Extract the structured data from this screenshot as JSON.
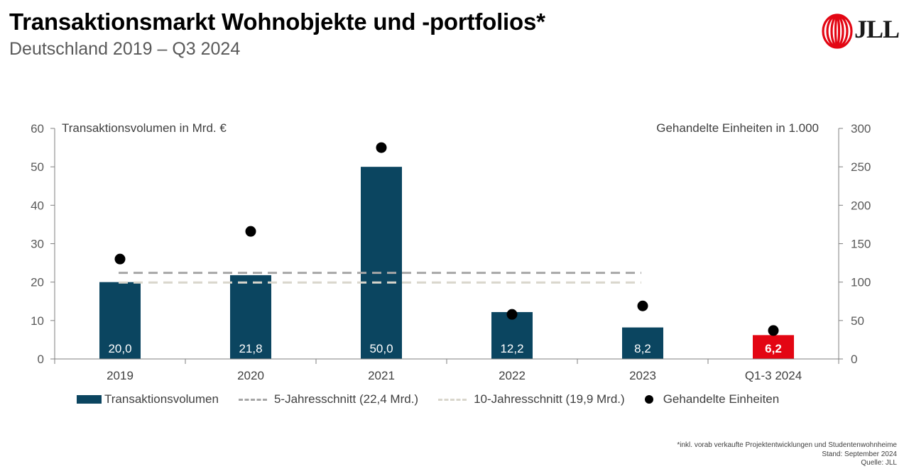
{
  "title": "Transaktionsmarkt Wohnobjekte und -portfolios*",
  "subtitle": "Deutschland 2019 – Q3 2024",
  "logo": {
    "text": "JLL",
    "color": "#e30613"
  },
  "chart_data": {
    "type": "bar",
    "categories": [
      "2019",
      "2020",
      "2021",
      "2022",
      "2023",
      "Q1-3 2024"
    ],
    "series": [
      {
        "name": "Transaktionsvolumen",
        "type": "bar",
        "axis": "left",
        "values": [
          20.0,
          21.8,
          50.0,
          12.2,
          8.2,
          6.2
        ],
        "labels": [
          "20,0",
          "21,8",
          "50,0",
          "12,2",
          "8,2",
          "6,2"
        ],
        "color": "#0b4560",
        "highlight_color": "#e30613",
        "highlight_index": 5
      },
      {
        "name": "5-Jahresschnitt (22,4 Mrd.)",
        "type": "dashed-line",
        "axis": "left",
        "value": 22.4,
        "color": "#a6a6a6"
      },
      {
        "name": "10-Jahresschnitt (19,9 Mrd.)",
        "type": "dashed-line",
        "axis": "left",
        "value": 19.9,
        "color": "#d9d6cc"
      },
      {
        "name": "Gehandelte Einheiten",
        "type": "scatter",
        "axis": "right",
        "values": [
          130,
          166,
          275,
          58,
          69,
          37
        ],
        "color": "#000000"
      }
    ],
    "ylabel": "Transaktionsvolumen in Mrd. €",
    "ylim": [
      0,
      60
    ],
    "yticks": [
      "0",
      "10",
      "20",
      "30",
      "40",
      "50",
      "60"
    ],
    "y2label": "Gehandelte Einheiten in 1.000",
    "y2lim": [
      0,
      300
    ],
    "y2ticks": [
      "0",
      "50",
      "100",
      "150",
      "200",
      "250",
      "300"
    ],
    "grid": false,
    "legend": "bottom"
  },
  "footnotes": {
    "note": "*inkl. vorab verkaufte Projektentwicklungen und Studentenwohnheime",
    "status": "Stand: September 2024",
    "source": "Quelle: JLL"
  }
}
